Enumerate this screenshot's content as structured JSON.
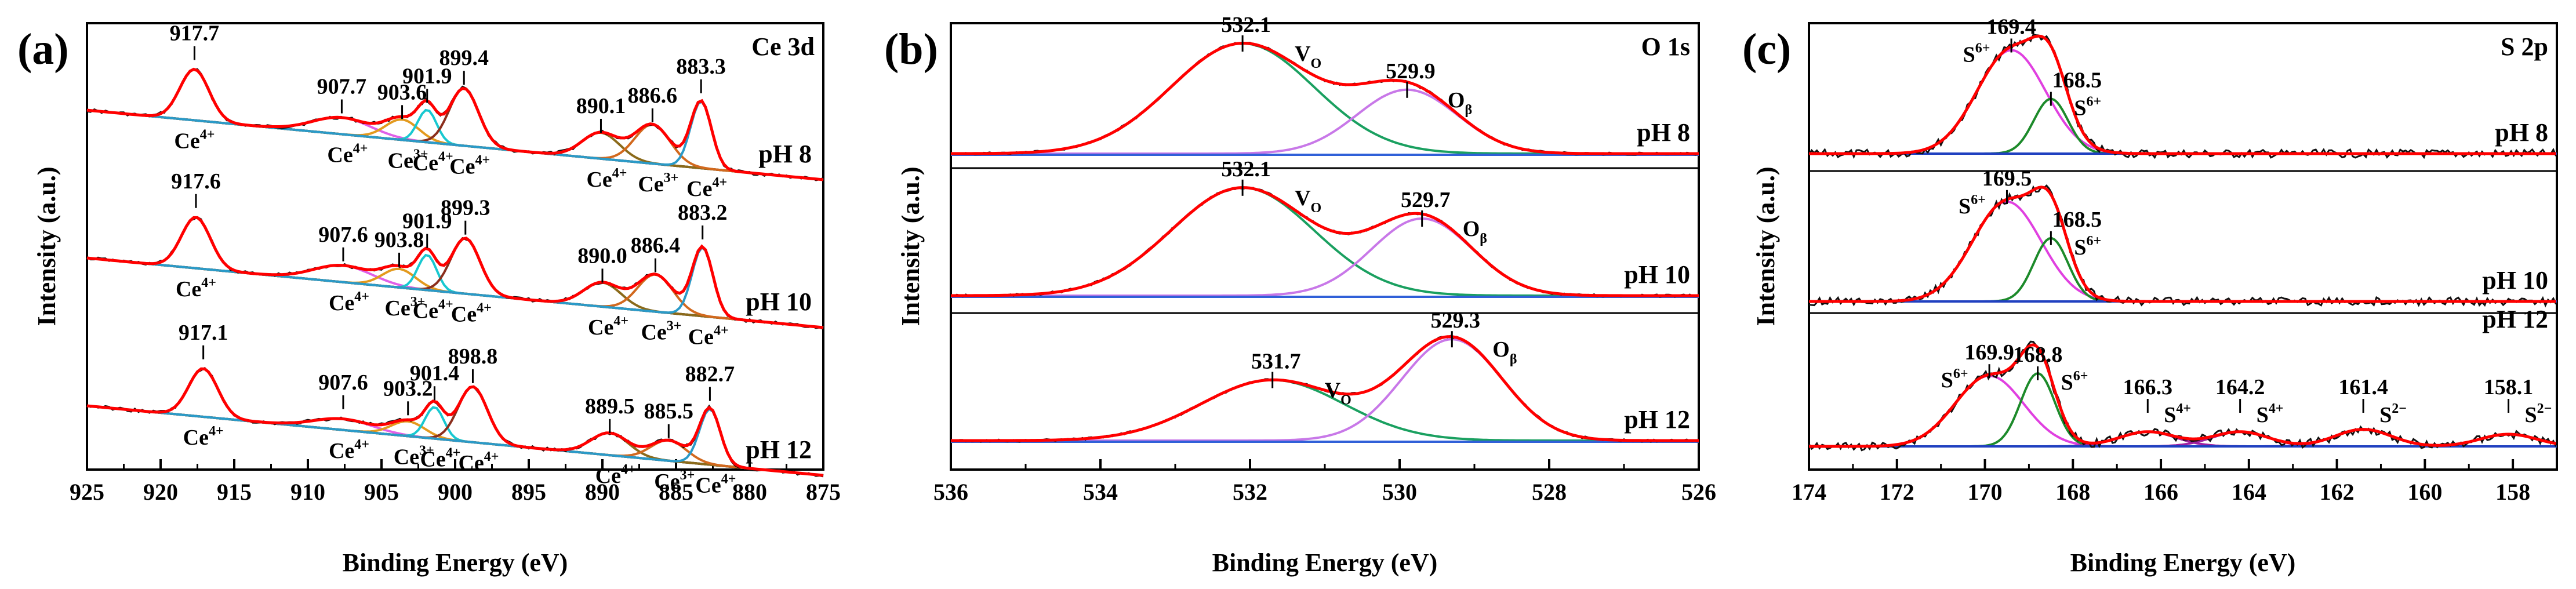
{
  "chart_data": [
    {
      "panel": "(a)",
      "type": "line",
      "title": "Ce 3d",
      "xlabel": "Binding Energy (eV)",
      "ylabel": "Intensity (a.u.)",
      "xlim": [
        925,
        875
      ],
      "xticks": [
        "925",
        "920",
        "915",
        "910",
        "905",
        "900",
        "895",
        "890",
        "885",
        "880",
        "875"
      ],
      "colors": {
        "envelope": "#ff0000",
        "data": "#111111",
        "background": "#3c9cd6"
      },
      "components": [
        {
          "species": "Ce4+",
          "color": "#4f8a3c"
        },
        {
          "species": "Ce4+",
          "color": "#e060e8"
        },
        {
          "species": "Ce3+",
          "color": "#e39a1e"
        },
        {
          "species": "Ce4+",
          "color": "#18c8d0"
        },
        {
          "species": "Ce4+",
          "color": "#8b2e1c"
        },
        {
          "species": "Ce4+",
          "color": "#8b6a1a"
        },
        {
          "species": "Ce3+",
          "color": "#d2691e"
        },
        {
          "species": "Ce4+",
          "color": "#2a9ac8"
        }
      ],
      "series": [
        {
          "name": "pH 8",
          "peak_labels": [
            "917.7",
            "907.7",
            "903.6",
            "901.9",
            "899.4",
            "890.1",
            "886.6",
            "883.3"
          ],
          "peaks": [
            917.7,
            907.7,
            903.6,
            901.9,
            899.4,
            890.1,
            886.6,
            883.3
          ],
          "heights": [
            0.55,
            0.18,
            0.22,
            0.35,
            0.62,
            0.28,
            0.42,
            0.72
          ]
        },
        {
          "name": "pH 10",
          "peak_labels": [
            "917.6",
            "907.6",
            "903.8",
            "901.9",
            "899.3",
            "890.0",
            "886.4",
            "883.2"
          ],
          "peaks": [
            917.6,
            907.6,
            903.8,
            901.9,
            899.3,
            890.0,
            886.4,
            883.2
          ],
          "heights": [
            0.55,
            0.18,
            0.2,
            0.38,
            0.6,
            0.26,
            0.4,
            0.74
          ]
        },
        {
          "name": "pH 12",
          "peak_labels": [
            "917.1",
            "907.6",
            "903.2",
            "901.4",
            "898.8",
            "889.5",
            "885.5",
            "882.7"
          ],
          "peaks": [
            917.1,
            907.6,
            903.2,
            901.4,
            898.8,
            889.5,
            885.5,
            882.7
          ],
          "heights": [
            0.52,
            0.12,
            0.16,
            0.34,
            0.6,
            0.24,
            0.22,
            0.6
          ]
        }
      ]
    },
    {
      "panel": "(b)",
      "type": "line",
      "title": "O 1s",
      "xlabel": "Binding Energy (eV)",
      "ylabel": "Intensity (a.u.)",
      "xlim": [
        536,
        526
      ],
      "xticks": [
        "536",
        "534",
        "532",
        "530",
        "528",
        "526"
      ],
      "colors": {
        "envelope": "#ff0000",
        "data": "#111111",
        "vo": "#1aa060",
        "obeta": "#c878e8",
        "background": "#3060d8"
      },
      "species_labels": {
        "vo": "V",
        "vo_sub": "O",
        "ob": "O",
        "ob_sub": "β"
      },
      "series": [
        {
          "name": "pH 8",
          "peak_labels": [
            "532.1",
            "529.9"
          ],
          "peaks": [
            532.1,
            529.9
          ],
          "heights": [
            1.0,
            0.58
          ]
        },
        {
          "name": "pH 10",
          "peak_labels": [
            "532.1",
            "529.7"
          ],
          "peaks": [
            532.1,
            529.7
          ],
          "heights": [
            0.98,
            0.7
          ]
        },
        {
          "name": "pH 12",
          "peak_labels": [
            "531.7",
            "529.3"
          ],
          "peaks": [
            531.7,
            529.3
          ],
          "heights": [
            0.55,
            0.92
          ]
        }
      ]
    },
    {
      "panel": "(c)",
      "type": "line",
      "title": "S 2p",
      "xlabel": "Binding Energy (eV)",
      "ylabel": "Intensity (a.u.)",
      "xlim": [
        174,
        157
      ],
      "xticks": [
        "174",
        "172",
        "170",
        "168",
        "166",
        "164",
        "162",
        "160",
        "158"
      ],
      "colors": {
        "envelope": "#ff0000",
        "data": "#111111",
        "s6a": "#e040e0",
        "s6b": "#1c8a2a",
        "minor": "#a020a0",
        "background": "#2040c0"
      },
      "series": [
        {
          "name": "pH 8",
          "peak_labels": [
            "169.4",
            "168.5"
          ],
          "species": [
            "S6+",
            "S6+"
          ],
          "peaks": [
            169.4,
            168.5
          ],
          "heights": [
            0.85,
            0.45
          ]
        },
        {
          "name": "pH 10",
          "peak_labels": [
            "169.5",
            "168.5"
          ],
          "species": [
            "S6+",
            "S6+"
          ],
          "peaks": [
            169.5,
            168.5
          ],
          "heights": [
            0.82,
            0.52
          ]
        },
        {
          "name": "pH 12",
          "peak_labels": [
            "169.9",
            "168.8",
            "166.3",
            "164.2",
            "161.4",
            "158.1"
          ],
          "species": [
            "S6+",
            "S6+",
            "S4+",
            "S4+",
            "S2−",
            "S2−"
          ],
          "peaks": [
            169.9,
            168.8,
            166.3,
            164.2,
            161.4,
            158.1
          ],
          "heights": [
            0.58,
            0.6,
            0.12,
            0.12,
            0.14,
            0.1
          ]
        }
      ]
    }
  ]
}
